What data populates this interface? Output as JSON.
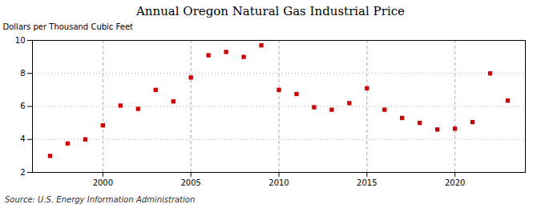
{
  "chart_data": {
    "type": "scatter",
    "title": "Annual Oregon Natural Gas Industrial Price",
    "ylabel": "Dollars per Thousand Cubic Feet",
    "source": "Source: U.S. Energy Information Administration",
    "x": [
      1997,
      1998,
      1999,
      2000,
      2001,
      2002,
      2003,
      2004,
      2005,
      2006,
      2007,
      2008,
      2009,
      2010,
      2011,
      2012,
      2013,
      2014,
      2015,
      2016,
      2017,
      2018,
      2019,
      2020,
      2021,
      2022,
      2023
    ],
    "values": [
      3.0,
      3.75,
      4.0,
      4.85,
      6.05,
      5.85,
      7.0,
      6.3,
      7.75,
      9.1,
      9.3,
      9.0,
      9.7,
      7.0,
      6.75,
      5.95,
      5.8,
      6.2,
      7.1,
      5.8,
      5.3,
      5.0,
      4.6,
      4.65,
      5.05,
      8.0,
      6.35
    ],
    "color": "#cc0000",
    "marker": "square",
    "xlim": [
      1996,
      2024
    ],
    "ylim": [
      2,
      10
    ],
    "xticks": [
      2000,
      2005,
      2010,
      2015,
      2020
    ],
    "yticks": [
      2,
      4,
      6,
      8,
      10
    ],
    "grid": true
  }
}
